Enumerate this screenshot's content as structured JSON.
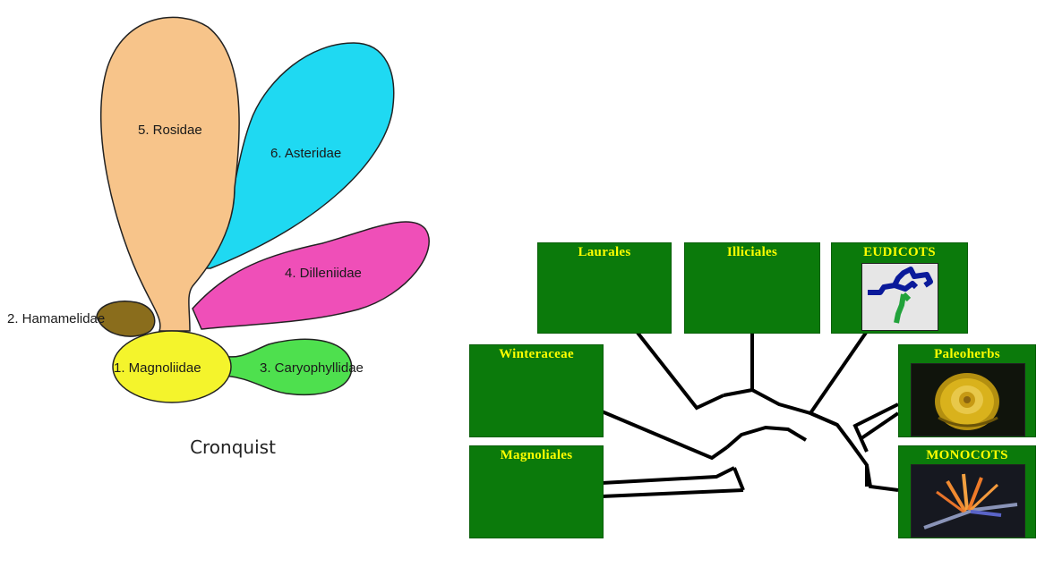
{
  "cronquist": {
    "caption": "Cronquist",
    "labels": {
      "rosidae": "5. Rosidae",
      "asteridae": "6. Asteridae",
      "dilleniidae": "4. Dilleniidae",
      "hamamelidae": "2. Hamamelidae",
      "magnoliidae": "1. Magnoliidae",
      "caryophyllidae": "3. Caryophyllidae"
    },
    "colors": {
      "rosidae": "#f7c48a",
      "asteridae": "#1fd9f2",
      "dilleniidae": "#ef4fb8",
      "hamamelidae": "#8a6d1c",
      "magnoliidae": "#f4f42c",
      "caryophyllidae": "#4ee04e"
    }
  },
  "tree": {
    "box_color": "#0b7a0b",
    "title_color": "#ffff00",
    "boxes": {
      "laurales": "Laurales",
      "illiciales": "Illiciales",
      "eudicots": "EUDICOTS",
      "winteraceae": "Winteraceae",
      "paleoherbs": "Paleoherbs",
      "magnoliales": "Magnoliales",
      "monocots": "MONOCOTS"
    }
  }
}
